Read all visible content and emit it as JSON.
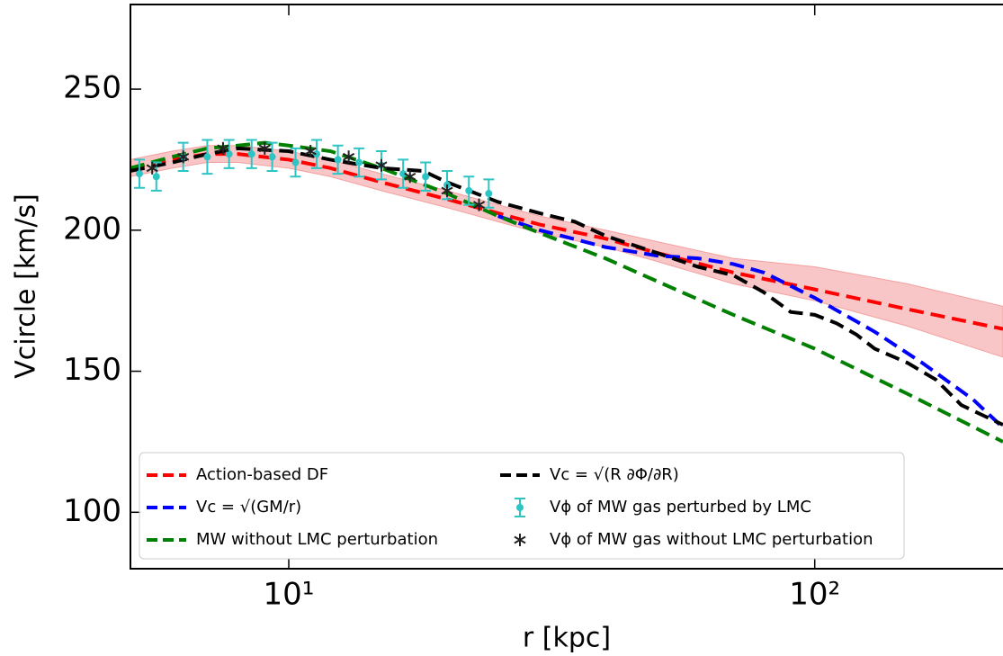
{
  "chart_data": {
    "type": "line",
    "xlabel": "r [kpc]",
    "ylabel": "Vcircle [km/s]",
    "xscale": "log",
    "xlim": [
      5,
      228
    ],
    "ylim": [
      80,
      280
    ],
    "xticks": [
      {
        "value": 10,
        "label": "10¹"
      },
      {
        "value": 100,
        "label": "10²"
      }
    ],
    "yticks": [
      100,
      150,
      200,
      250
    ],
    "grid": false,
    "legend": "lower left",
    "series": [
      {
        "name": "Action-based DF",
        "color": "#ff0000",
        "style": "dashed",
        "x": [
          5,
          6,
          7,
          8,
          10,
          12,
          15,
          20,
          25,
          30,
          40,
          50,
          70,
          100,
          150,
          228
        ],
        "values": [
          222,
          225,
          227,
          227,
          225,
          222,
          217,
          211,
          206,
          202,
          197,
          192,
          185,
          179,
          172,
          165
        ],
        "lower": [
          219,
          222,
          224,
          224,
          222,
          219,
          214,
          208,
          203,
          199,
          194,
          189,
          181,
          175,
          166,
          155
        ],
        "upper": [
          225,
          228,
          230,
          230,
          228,
          225,
          220,
          214,
          209,
          205,
          200,
          196,
          190,
          187,
          181,
          173
        ],
        "band_color": "#f4a0a0"
      },
      {
        "name": "Vc = √(GM/r)",
        "color": "#0000ff",
        "style": "dashed",
        "x": [
          25,
          30,
          40,
          50,
          60,
          70,
          80,
          100,
          130,
          160,
          200,
          228
        ],
        "values": [
          205,
          200,
          194,
          191,
          190,
          188,
          185,
          176,
          164,
          153,
          140,
          130
        ]
      },
      {
        "name": "MW without LMC perturbation",
        "color": "#008000",
        "style": "dashed",
        "x": [
          5,
          6,
          7,
          8,
          9,
          10,
          12,
          15,
          20,
          25,
          30,
          40,
          50,
          70,
          100,
          150,
          228
        ],
        "values": [
          222,
          226,
          229,
          230,
          231,
          230,
          228,
          222,
          213,
          205,
          199,
          190,
          182,
          170,
          158,
          142,
          125
        ]
      },
      {
        "name": "Vc = √(R ∂Φ/∂R)",
        "color": "#000000",
        "style": "dashed",
        "x": [
          5,
          6,
          7,
          8,
          10,
          12,
          15,
          18,
          20,
          25,
          30,
          35,
          40,
          50,
          60,
          70,
          80,
          90,
          100,
          110,
          120,
          130,
          150,
          170,
          190,
          228
        ],
        "values": [
          221,
          224,
          227,
          229,
          228,
          225,
          222,
          221,
          217,
          210,
          206,
          203,
          198,
          192,
          187,
          184,
          178,
          171,
          170,
          167,
          163,
          158,
          153,
          147,
          138,
          131
        ]
      },
      {
        "name": "Vϕ of MW gas perturbed by LMC",
        "color": "#2ec4c4",
        "style": "errorbar",
        "x": [
          5.2,
          5.6,
          6.3,
          7.0,
          7.7,
          8.5,
          9.3,
          10.3,
          11.3,
          12.4,
          13.6,
          15,
          16.5,
          18.2,
          20,
          22,
          24
        ],
        "values": [
          220,
          219,
          226,
          226,
          227,
          227,
          226,
          224,
          227,
          225,
          224,
          223,
          220,
          219,
          216,
          214,
          213
        ],
        "errors": [
          5,
          5,
          5,
          6,
          5,
          5,
          5,
          5,
          5,
          5,
          5,
          5,
          5,
          5,
          5,
          5,
          5
        ]
      },
      {
        "name": "Vϕ of MW gas without LMC perturbation",
        "color": "#222222",
        "style": "star",
        "x": [
          5.5,
          6.3,
          7.5,
          9,
          11,
          13,
          15,
          17,
          20,
          23
        ],
        "values": [
          222,
          226,
          229,
          229,
          228,
          226,
          223,
          219,
          214,
          209
        ]
      }
    ]
  }
}
